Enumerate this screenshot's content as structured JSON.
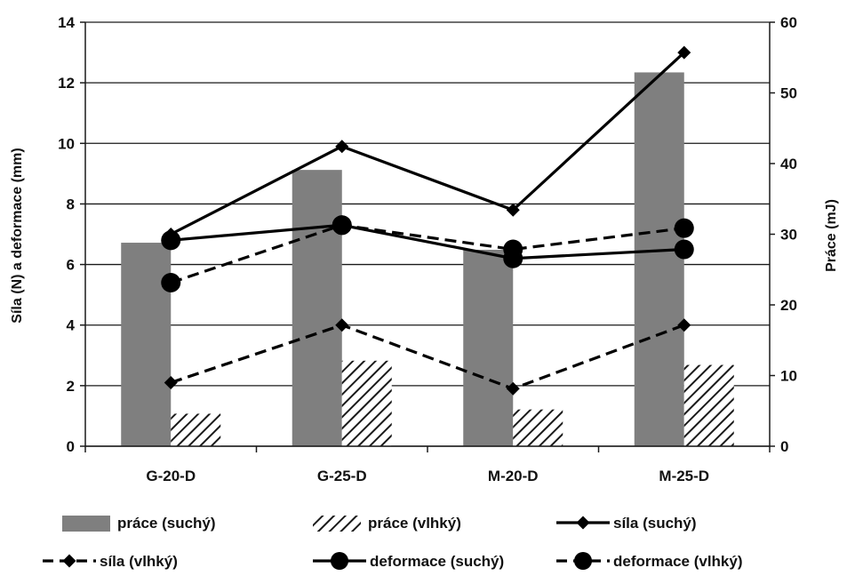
{
  "chart_data": {
    "type": "bar",
    "title": "",
    "categories": [
      "G-20-D",
      "G-25-D",
      "M-20-D",
      "M-25-D"
    ],
    "ylabel_left": "Síla (N) a deformace (mm)",
    "ylabel_right": "Práce (mJ)",
    "ylim_left": [
      0,
      14
    ],
    "yticks_left": [
      0,
      2,
      4,
      6,
      8,
      10,
      12,
      14
    ],
    "ylim_right": [
      0,
      60
    ],
    "yticks_right": [
      0,
      10,
      20,
      30,
      40,
      50,
      60
    ],
    "grid": true,
    "legend_position": "bottom",
    "series": [
      {
        "key": "prace_s",
        "name": "práce (suchý)",
        "kind": "bar",
        "axis": "right",
        "style": "solid-gray",
        "values": [
          28.8,
          39.1,
          27.8,
          52.9
        ]
      },
      {
        "key": "prace_v",
        "name": "práce (vlhký)",
        "kind": "bar",
        "axis": "right",
        "style": "hatched",
        "values": [
          4.6,
          12.1,
          5.2,
          11.5
        ]
      },
      {
        "key": "sila_s",
        "name": "síla (suchý)",
        "kind": "line",
        "axis": "left",
        "style": "solid-diamond",
        "values": [
          7.0,
          9.9,
          7.8,
          13.0
        ]
      },
      {
        "key": "sila_v",
        "name": "síla (vlhký)",
        "kind": "line",
        "axis": "left",
        "style": "dashed-diamond",
        "values": [
          2.1,
          4.0,
          1.9,
          4.0
        ]
      },
      {
        "key": "def_s",
        "name": "deformace (suchý)",
        "kind": "line",
        "axis": "left",
        "style": "solid-circle",
        "values": [
          6.8,
          7.3,
          6.2,
          6.5
        ]
      },
      {
        "key": "def_v",
        "name": "deformace (vlhký)",
        "kind": "line",
        "axis": "left",
        "style": "dashed-circle",
        "values": [
          5.4,
          7.3,
          6.5,
          7.2
        ]
      }
    ]
  }
}
